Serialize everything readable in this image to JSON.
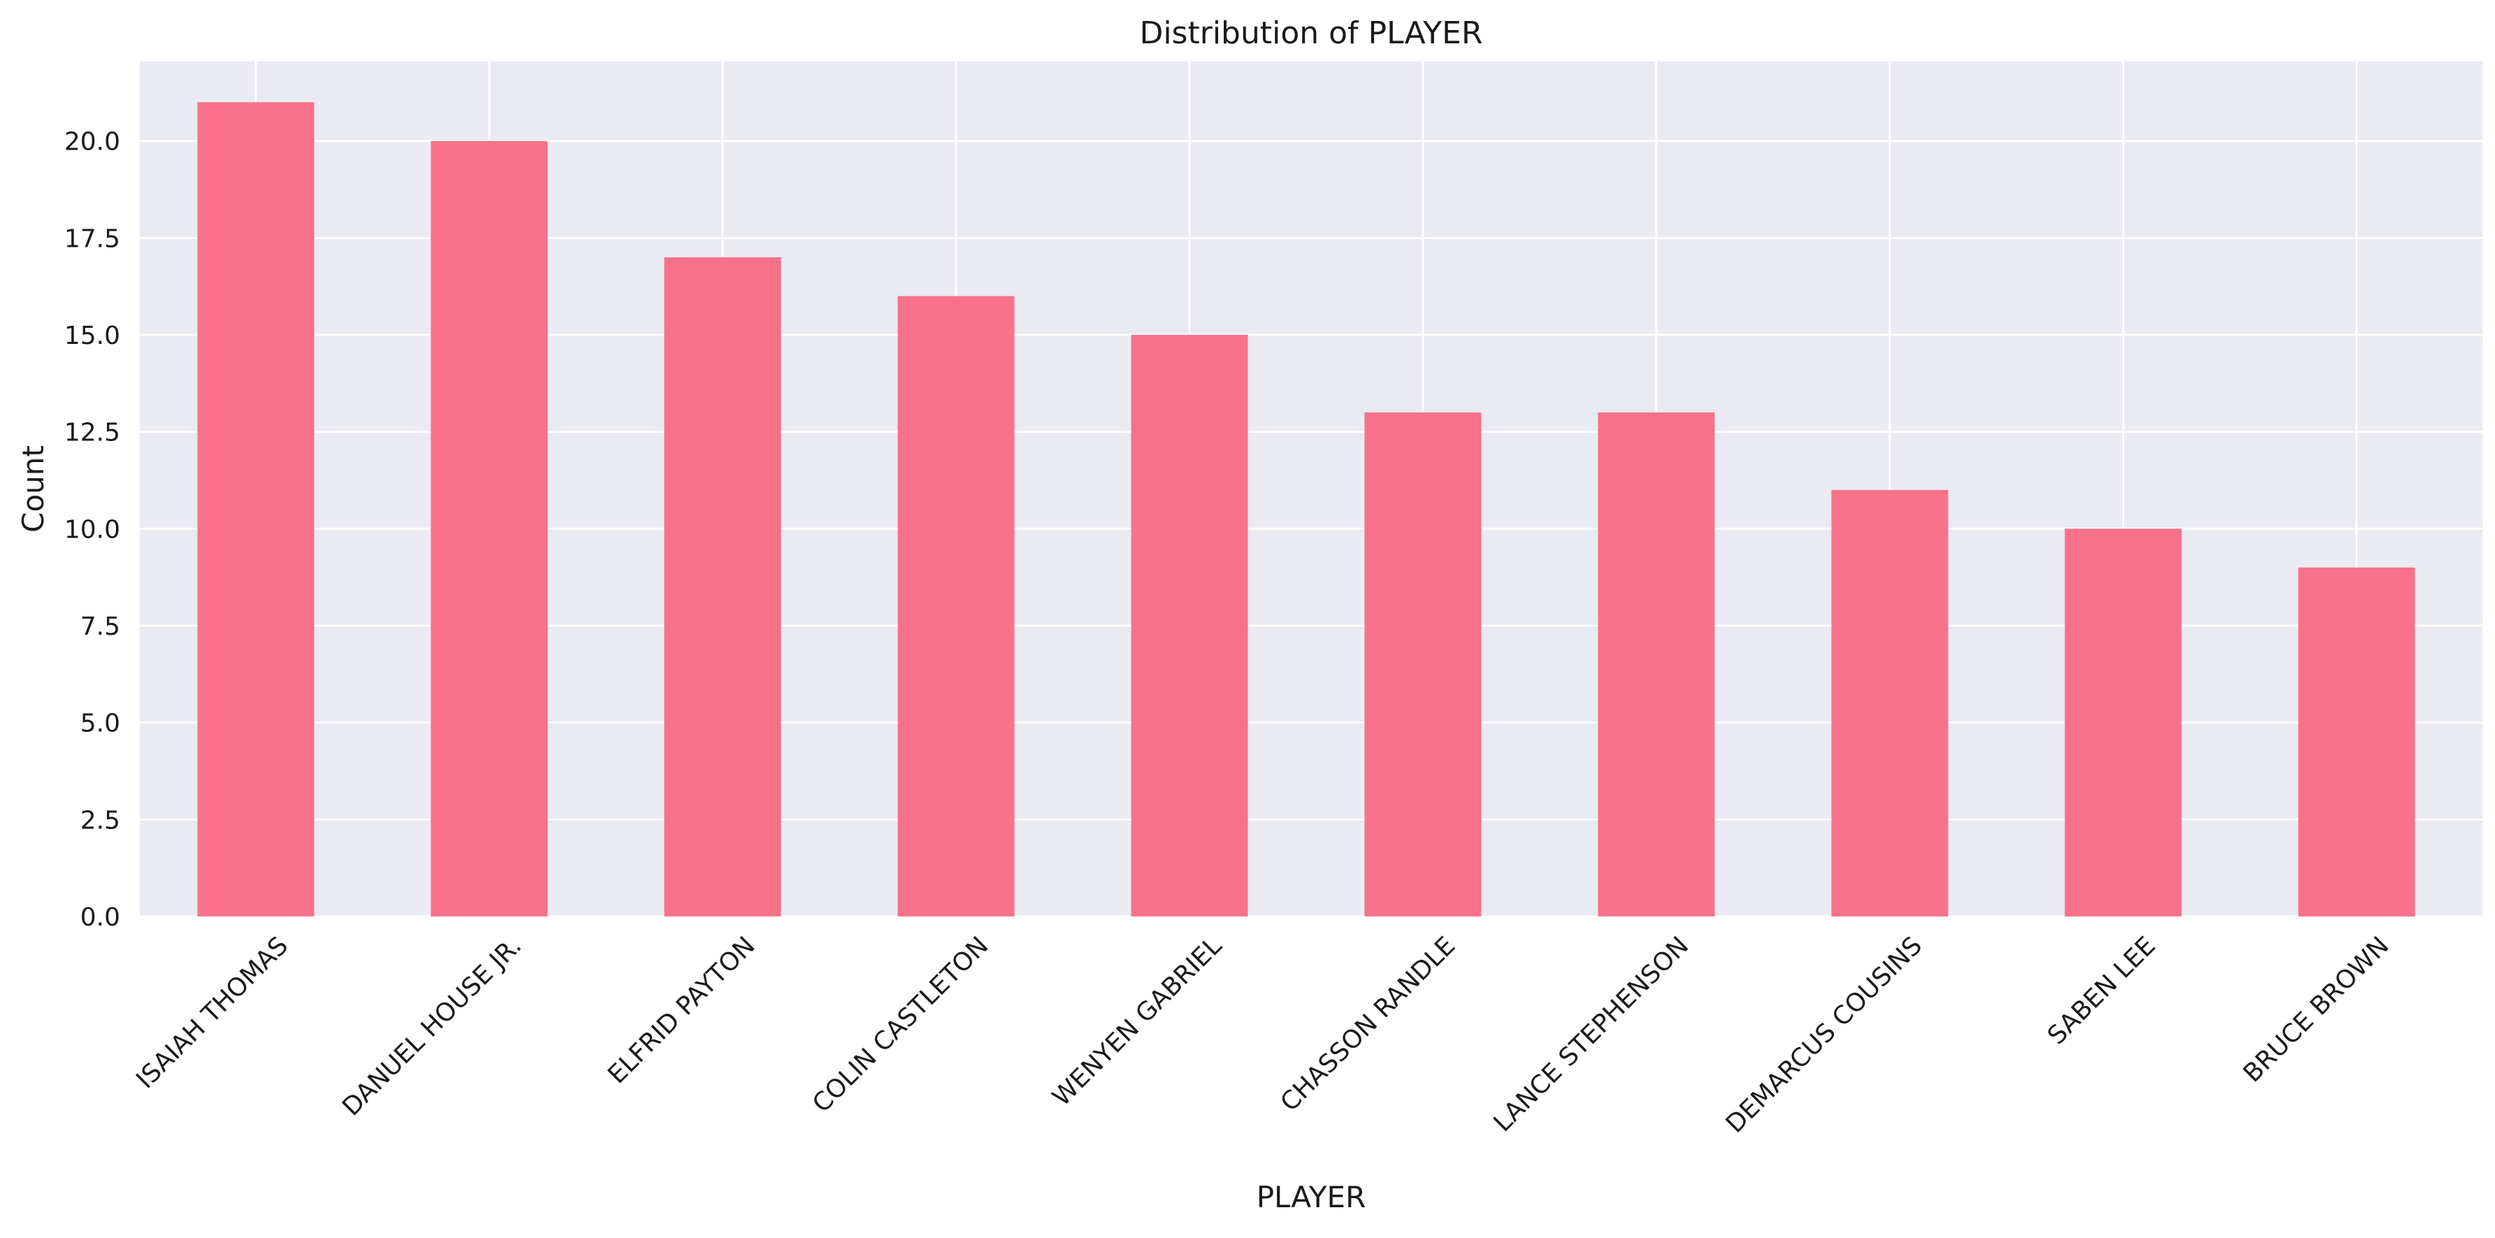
{
  "chart_data": {
    "type": "bar",
    "title": "Distribution of PLAYER",
    "xlabel": "PLAYER",
    "ylabel": "Count",
    "categories": [
      "ISAIAH THOMAS",
      "DANUEL HOUSE JR.",
      "ELFRID PAYTON",
      "COLIN CASTLETON",
      "WENYEN GABRIEL",
      "CHASSON RANDLE",
      "LANCE STEPHENSON",
      "DEMARCUS COUSINS",
      "SABEN LEE",
      "BRUCE BROWN"
    ],
    "values": [
      21,
      20,
      17,
      16,
      15,
      13,
      13,
      11,
      10,
      9
    ],
    "ylim": [
      0,
      22.05
    ],
    "yticks": [
      "0.0",
      "2.5",
      "5.0",
      "7.5",
      "10.0",
      "12.5",
      "15.0",
      "17.5",
      "20.0"
    ],
    "grid": true,
    "legend": "none",
    "colors": {
      "bar": "#f77189",
      "plot_background": "#eaeaf2",
      "grid": "#ffffff"
    }
  }
}
